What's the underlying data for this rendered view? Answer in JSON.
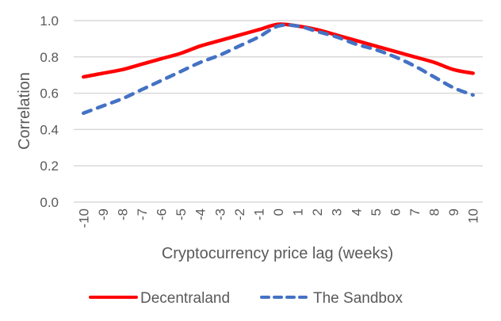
{
  "chart_data": {
    "type": "line",
    "title": "",
    "xlabel": "Cryptocurrency price lag (weeks)",
    "ylabel": "Correlation",
    "ylim": [
      0,
      1.0
    ],
    "yticks": [
      "0.0",
      "0.2",
      "0.4",
      "0.6",
      "0.8",
      "1.0"
    ],
    "grid": true,
    "legend_position": "bottom",
    "categories": [
      "-10",
      "-9",
      "-8",
      "-7",
      "-6",
      "-5",
      "-4",
      "-3",
      "-2",
      "-1",
      "0",
      "1",
      "2",
      "3",
      "4",
      "5",
      "6",
      "7",
      "8",
      "9",
      "10"
    ],
    "series": [
      {
        "name": "Decentraland",
        "color": "#FF0000",
        "style": "solid",
        "values": [
          0.69,
          0.71,
          0.73,
          0.76,
          0.79,
          0.82,
          0.86,
          0.89,
          0.92,
          0.95,
          0.98,
          0.97,
          0.95,
          0.92,
          0.89,
          0.86,
          0.83,
          0.8,
          0.77,
          0.73,
          0.71
        ]
      },
      {
        "name": "The Sandbox",
        "color": "#4472C4",
        "style": "dashed",
        "values": [
          0.49,
          0.53,
          0.57,
          0.62,
          0.67,
          0.72,
          0.77,
          0.81,
          0.86,
          0.91,
          0.97,
          0.97,
          0.94,
          0.91,
          0.87,
          0.84,
          0.8,
          0.75,
          0.69,
          0.63,
          0.59
        ]
      }
    ]
  }
}
